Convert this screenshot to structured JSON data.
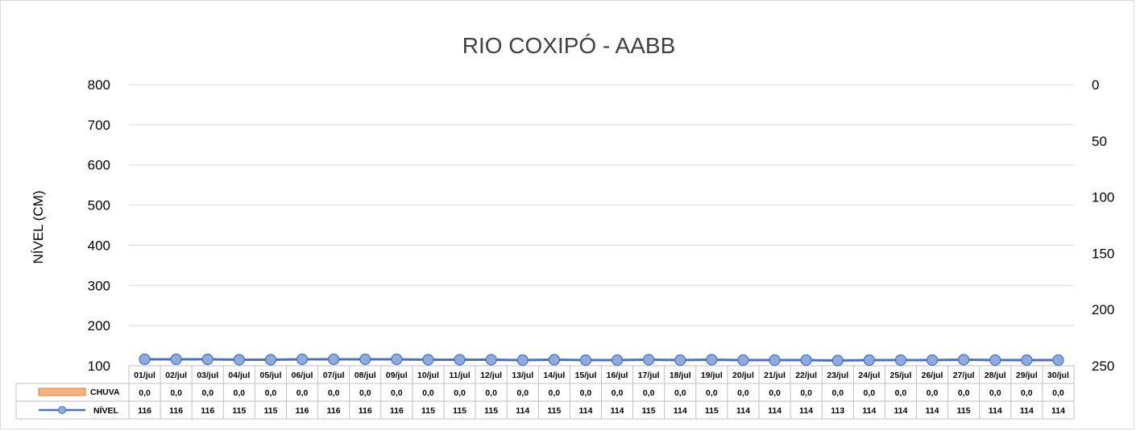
{
  "chart_data": {
    "type": "line",
    "title": "RIO COXIPÓ - AABB",
    "ylabel": "NÍVEL (CM)",
    "y_left": {
      "ticks": [
        "800",
        "700",
        "600",
        "500",
        "400",
        "300",
        "200",
        "100"
      ],
      "range": [
        100,
        800
      ]
    },
    "y_right": {
      "ticks": [
        "0",
        "50",
        "100",
        "150",
        "200",
        "250"
      ],
      "range": [
        250,
        0
      ],
      "inverted": true
    },
    "categories": [
      "01/jul",
      "02/jul",
      "03/jul",
      "04/jul",
      "05/jul",
      "06/jul",
      "07/jul",
      "08/jul",
      "09/jul",
      "10/jul",
      "11/jul",
      "12/jul",
      "13/jul",
      "14/jul",
      "15/jul",
      "16/jul",
      "17/jul",
      "18/jul",
      "19/jul",
      "20/jul",
      "21/jul",
      "22/jul",
      "23/jul",
      "24/jul",
      "25/jul",
      "26/jul",
      "27/jul",
      "28/jul",
      "29/jul",
      "30/jul"
    ],
    "series": [
      {
        "name": "CHUVA",
        "kind": "bar",
        "axis": "right",
        "color": "#f4b183",
        "border": "#ed7d31",
        "labels": [
          "0,0",
          "0,0",
          "0,0",
          "0,0",
          "0,0",
          "0,0",
          "0,0",
          "0,0",
          "0,0",
          "0,0",
          "0,0",
          "0,0",
          "0,0",
          "0,0",
          "0,0",
          "0,0",
          "0,0",
          "0,0",
          "0,0",
          "0,0",
          "0,0",
          "0,0",
          "0,0",
          "0,0",
          "0,0",
          "0,0",
          "0,0",
          "0,0",
          "0,0",
          "0,0"
        ],
        "values": [
          0,
          0,
          0,
          0,
          0,
          0,
          0,
          0,
          0,
          0,
          0,
          0,
          0,
          0,
          0,
          0,
          0,
          0,
          0,
          0,
          0,
          0,
          0,
          0,
          0,
          0,
          0,
          0,
          0,
          0
        ]
      },
      {
        "name": "NÍVEL",
        "kind": "line",
        "axis": "left",
        "color": "#4472c4",
        "marker_fill": "#8faadc",
        "labels": [
          "116",
          "116",
          "116",
          "115",
          "115",
          "116",
          "116",
          "116",
          "116",
          "115",
          "115",
          "115",
          "114",
          "115",
          "114",
          "114",
          "115",
          "114",
          "115",
          "114",
          "114",
          "114",
          "113",
          "114",
          "114",
          "114",
          "115",
          "114",
          "114",
          "114"
        ],
        "values": [
          116,
          116,
          116,
          115,
          115,
          116,
          116,
          116,
          116,
          115,
          115,
          115,
          114,
          115,
          114,
          114,
          115,
          114,
          115,
          114,
          114,
          114,
          113,
          114,
          114,
          114,
          115,
          114,
          114,
          114
        ]
      }
    ],
    "grid": true,
    "legend": "data-table"
  }
}
